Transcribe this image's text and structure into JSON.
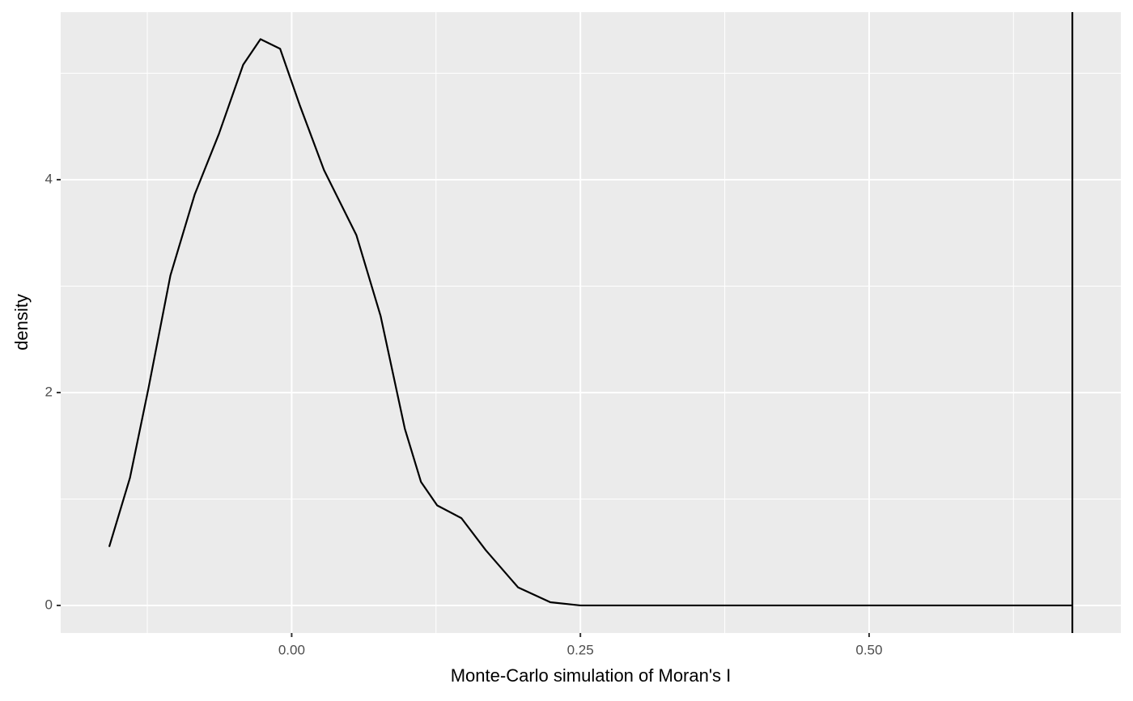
{
  "chart_data": {
    "type": "line",
    "x_label": "Monte-Carlo simulation of Moran's I",
    "y_label": "density",
    "x": [
      -0.158,
      -0.14,
      -0.124,
      -0.105,
      -0.084,
      -0.063,
      -0.042,
      -0.027,
      -0.01,
      0.007,
      0.028,
      0.056,
      0.077,
      0.098,
      0.112,
      0.126,
      0.147,
      0.168,
      0.196,
      0.224,
      0.25,
      0.676
    ],
    "series": [
      {
        "color": "#000000",
        "values": [
          0.55,
          1.2,
          2.04,
          3.1,
          3.86,
          4.43,
          5.08,
          5.32,
          5.23,
          4.7,
          4.09,
          3.48,
          2.72,
          1.66,
          1.16,
          0.94,
          0.82,
          0.52,
          0.17,
          0.03,
          0.0,
          0.0
        ]
      }
    ],
    "vline": 0.676,
    "xlim": [
      -0.2,
      0.718
    ],
    "ylim": [
      -0.259,
      5.574
    ],
    "xticks": [
      {
        "value": 0,
        "label": "0.00"
      },
      {
        "value": 0.25,
        "label": "0.25"
      },
      {
        "value": 0.5,
        "label": "0.50"
      }
    ],
    "yticks": [
      0,
      2,
      4
    ],
    "x_minor_grid": [
      -0.125,
      0.125,
      0.375,
      0.625
    ],
    "y_minor_grid": [
      1,
      3,
      5
    ],
    "grid": true
  }
}
